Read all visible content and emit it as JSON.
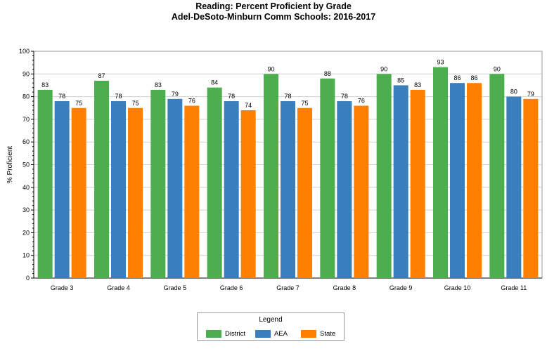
{
  "chart_data": {
    "type": "bar",
    "title_lines": [
      "Reading: Percent Proficient by Grade",
      "Adel-DeSoto-Minburn Comm Schools: 2016-2017"
    ],
    "xlabel": "",
    "ylabel": "% Proficient",
    "ylim": [
      0,
      100
    ],
    "yticks": [
      0,
      10,
      20,
      30,
      40,
      50,
      60,
      70,
      80,
      90,
      100
    ],
    "grid": true,
    "categories": [
      "Grade 3",
      "Grade 4",
      "Grade 5",
      "Grade 6",
      "Grade 7",
      "Grade 8",
      "Grade 9",
      "Grade 10",
      "Grade 11"
    ],
    "series": [
      {
        "name": "District",
        "color": "#4cae4c",
        "values": [
          83,
          87,
          83,
          84,
          90,
          88,
          90,
          93,
          90
        ]
      },
      {
        "name": "AEA",
        "color": "#3a7fbd",
        "values": [
          78,
          78,
          79,
          78,
          78,
          78,
          85,
          86,
          80
        ]
      },
      {
        "name": "State",
        "color": "#ff8000",
        "values": [
          75,
          75,
          76,
          74,
          75,
          76,
          83,
          86,
          79
        ]
      }
    ],
    "legend": {
      "title": "Legend",
      "placement": "bottom-center"
    }
  }
}
